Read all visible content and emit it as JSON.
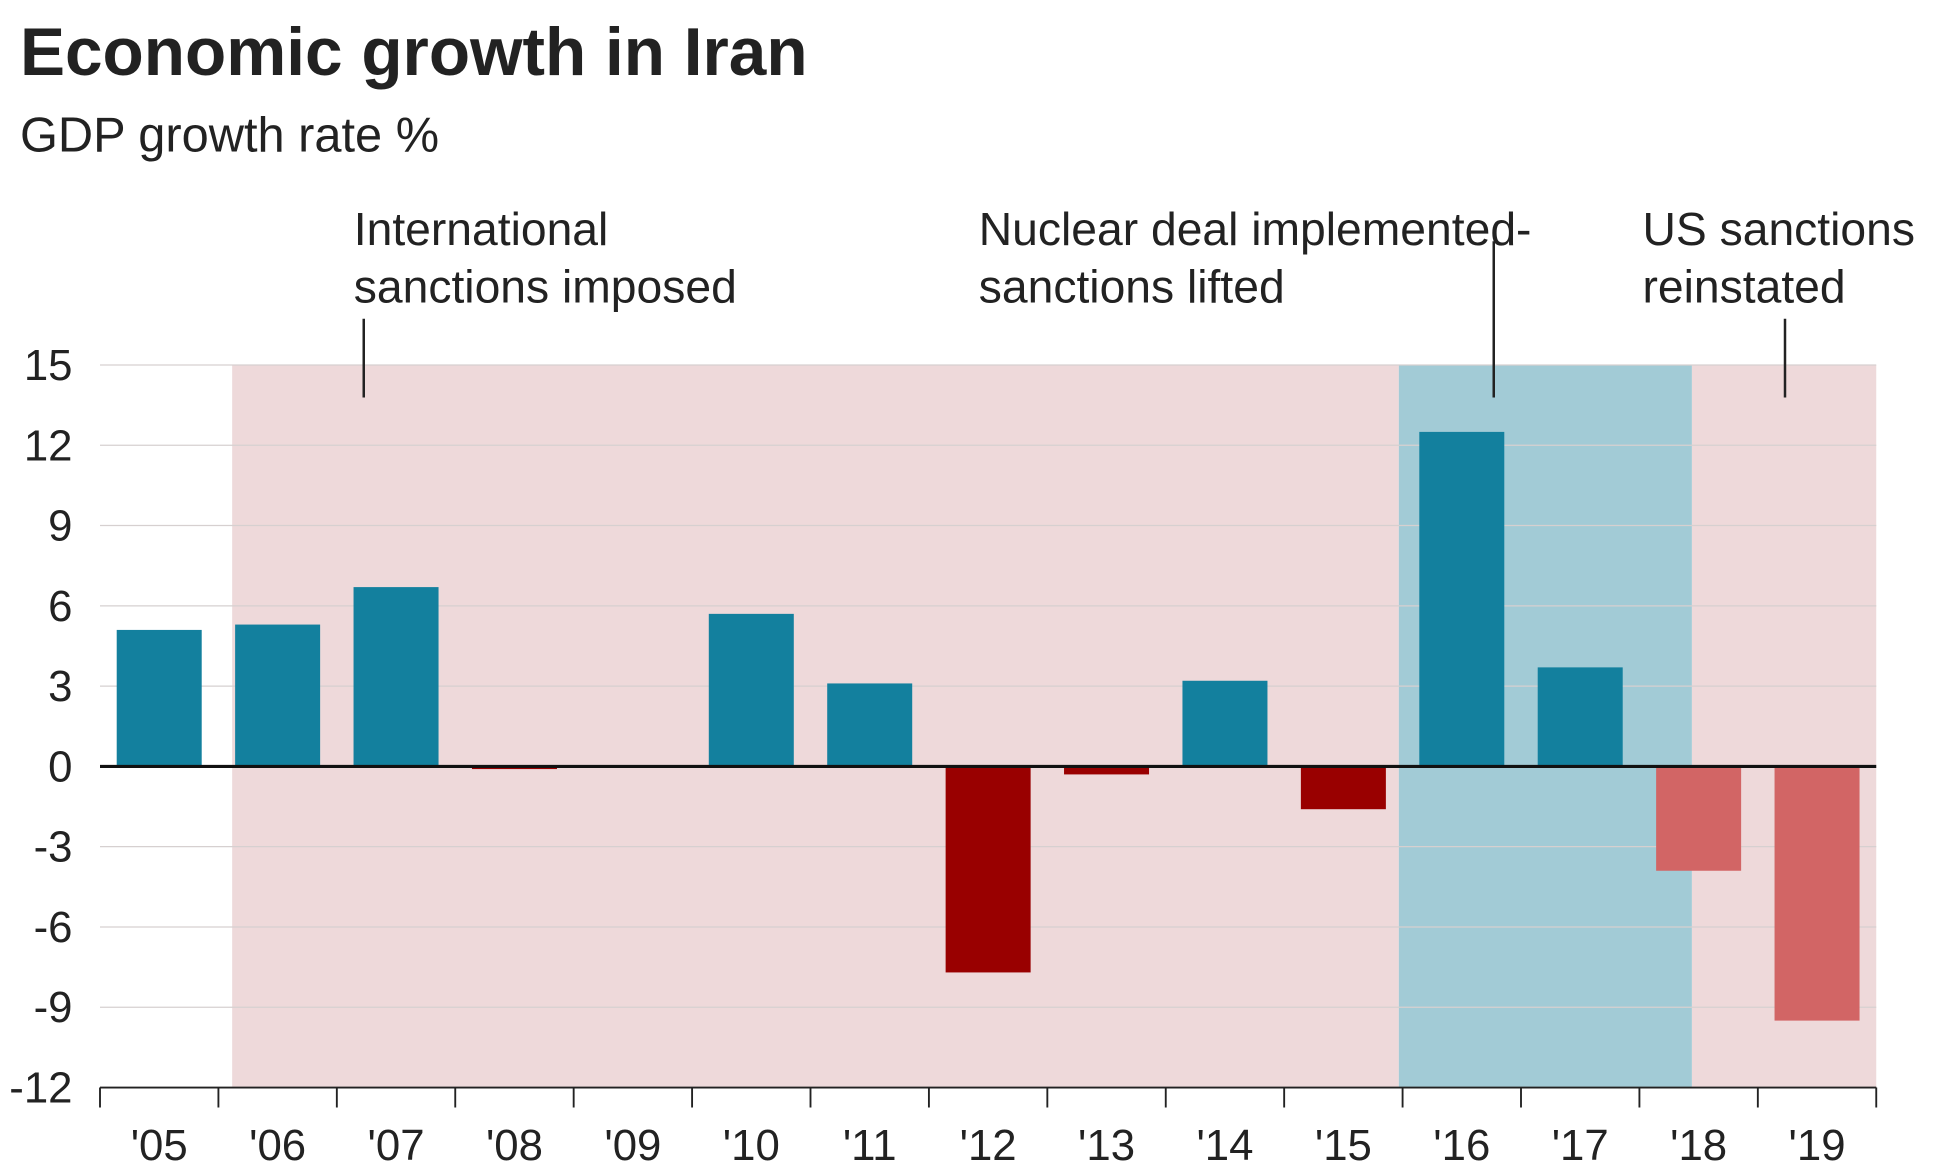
{
  "chart_data": {
    "type": "bar",
    "title": "Economic growth in Iran",
    "subtitle": "GDP growth rate %",
    "xlabel": "",
    "ylabel": "",
    "ylim": [
      -12,
      15
    ],
    "yticks": [
      15,
      12,
      9,
      6,
      3,
      0,
      -3,
      -6,
      -9,
      -12
    ],
    "grid": true,
    "categories": [
      "'05",
      "'06",
      "'07",
      "'08",
      "'09",
      "'10",
      "'11",
      "'12",
      "'13",
      "'14",
      "'15",
      "'16",
      "'17",
      "'18",
      "'19"
    ],
    "values": [
      5.1,
      5.3,
      6.7,
      -0.1,
      0.0,
      5.7,
      3.1,
      -7.7,
      -0.3,
      3.2,
      -1.6,
      12.5,
      3.7,
      -3.9,
      -9.5
    ],
    "colors": {
      "positive": "#13809e",
      "negative": "#990000",
      "negative_reinstated": "#d26565",
      "sanctions_period": "#eed9da",
      "deal_period": "#a2cbd6"
    },
    "periods": [
      {
        "type": "sanctions",
        "from": "'06",
        "to": "'15"
      },
      {
        "type": "deal",
        "from": "'16",
        "to": "'17"
      },
      {
        "type": "sanctions",
        "from": "'18",
        "to": "'19"
      }
    ],
    "annotations": [
      {
        "lines": [
          "International",
          "sanctions imposed"
        ],
        "at": "'07"
      },
      {
        "lines": [
          "Nuclear deal implemented-",
          "sanctions lifted"
        ],
        "at": "'16"
      },
      {
        "lines": [
          "US sanctions",
          "reinstated"
        ],
        "at": "'19"
      }
    ]
  }
}
